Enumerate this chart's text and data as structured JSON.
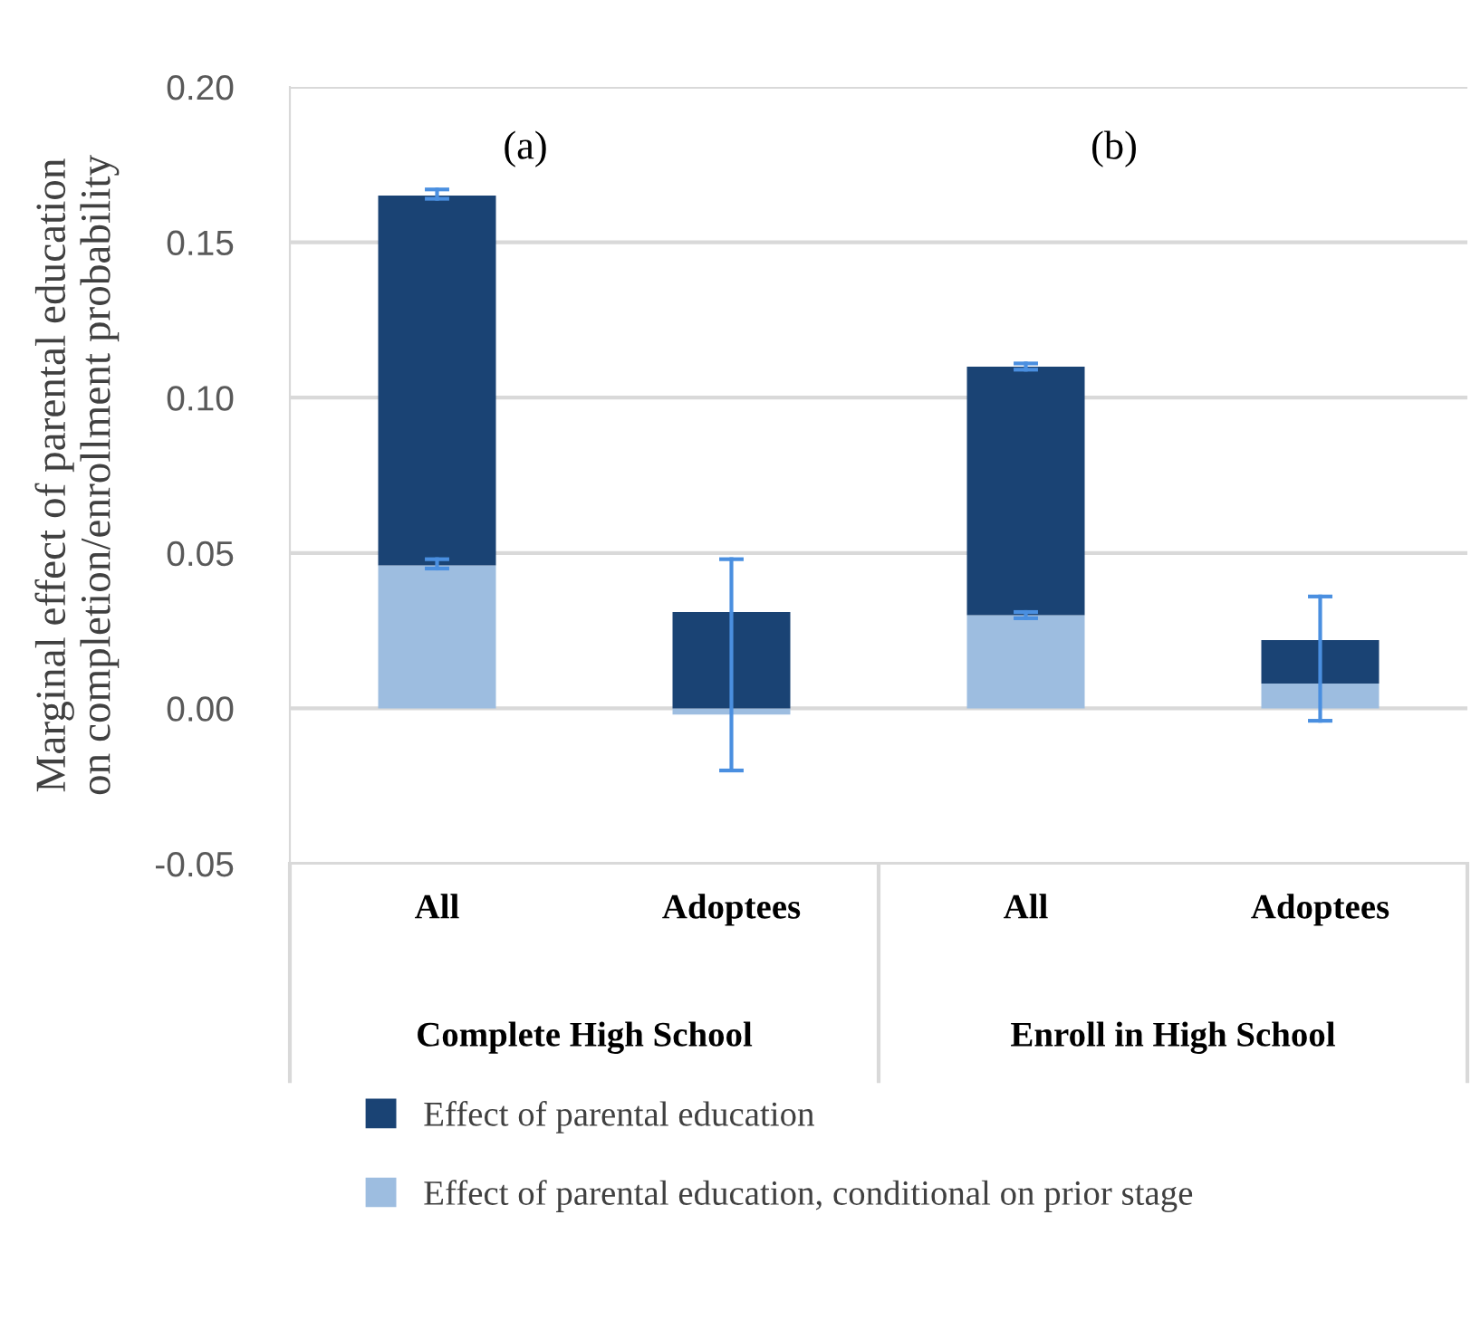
{
  "chart_data": {
    "type": "bar",
    "stacked": true,
    "ylabel": "Marginal effect of parental education\non completion/enrollment probability",
    "categories": [
      "All",
      "Adoptees",
      "All",
      "Adoptees"
    ],
    "series": [
      {
        "name": "Effect of parental education, conditional on prior stage",
        "color": "#9dbde0",
        "values": [
          0.046,
          -0.002,
          0.03,
          0.008
        ],
        "errors": [
          [
            0.045,
            0.048
          ],
          null,
          [
            0.029,
            0.031
          ],
          null
        ]
      },
      {
        "name": "Effect of parental education",
        "color": "#1a4374",
        "values": [
          0.119,
          0.031,
          0.08,
          0.014
        ],
        "errors": [
          [
            0.164,
            0.167
          ],
          [
            -0.02,
            0.048
          ],
          [
            0.109,
            0.111
          ],
          [
            -0.004,
            0.036
          ]
        ]
      }
    ],
    "ylim": [
      -0.05,
      0.2
    ],
    "yticks": [
      {
        "value": -0.05,
        "label": "-0.05"
      },
      {
        "value": 0,
        "label": "0.00"
      },
      {
        "value": 0.05,
        "label": "0.05"
      },
      {
        "value": 0.1,
        "label": "0.10"
      },
      {
        "value": 0.15,
        "label": "0.15"
      },
      {
        "value": 0.2,
        "label": "0.20"
      }
    ],
    "grid": "y",
    "legend": "bottom",
    "annotations": [
      "(a)",
      "(b)",
      "Complete High School",
      "Enroll in High School"
    ]
  }
}
